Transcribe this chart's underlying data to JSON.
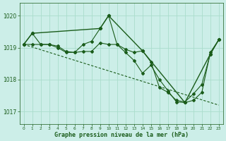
{
  "title": "Graphe pression niveau de la mer (hPa)",
  "background_color": "#cceee8",
  "grid_color": "#aaddcc",
  "line_color": "#1a5c1a",
  "xlim": [
    -0.5,
    23.5
  ],
  "ylim": [
    1016.6,
    1020.4
  ],
  "yticks": [
    1017,
    1018,
    1019,
    1020
  ],
  "xticks": [
    0,
    1,
    2,
    3,
    4,
    5,
    6,
    7,
    8,
    9,
    10,
    11,
    12,
    13,
    14,
    15,
    16,
    17,
    18,
    19,
    20,
    21,
    22,
    23
  ],
  "series1": {
    "x": [
      0,
      1,
      2,
      3,
      4,
      5,
      6,
      7,
      8,
      9,
      10,
      11,
      12,
      13,
      14,
      15,
      16,
      17,
      18,
      19,
      20,
      21,
      22,
      23
    ],
    "y": [
      1019.1,
      1019.45,
      1019.1,
      1019.1,
      1019.0,
      1018.85,
      1018.85,
      1019.1,
      1019.2,
      1019.6,
      1020.0,
      1019.1,
      1018.95,
      1018.85,
      1018.9,
      1018.55,
      1017.75,
      1017.6,
      1017.35,
      1017.3,
      1017.55,
      1017.85,
      1018.8,
      1019.25
    ]
  },
  "series2": {
    "x": [
      0,
      1,
      2,
      3,
      4,
      5,
      6,
      7,
      8,
      9,
      10,
      11,
      12,
      13,
      14,
      15,
      16,
      17,
      18,
      19,
      20,
      21,
      22,
      23
    ],
    "y": [
      1019.1,
      1019.1,
      1019.1,
      1019.1,
      1019.05,
      1018.88,
      1018.85,
      1018.88,
      1018.88,
      1019.15,
      1019.1,
      1019.1,
      1018.85,
      1018.6,
      1018.2,
      1018.45,
      1018.0,
      1017.65,
      1017.3,
      1017.28,
      1017.35,
      1017.6,
      1018.85,
      1019.25
    ]
  },
  "series3": {
    "x": [
      0,
      23
    ],
    "y": [
      1019.1,
      1017.2
    ]
  },
  "series4": {
    "x": [
      0,
      1,
      9,
      10,
      14,
      19,
      22,
      23
    ],
    "y": [
      1019.1,
      1019.45,
      1019.6,
      1020.0,
      1018.9,
      1017.28,
      1018.8,
      1019.25
    ]
  }
}
